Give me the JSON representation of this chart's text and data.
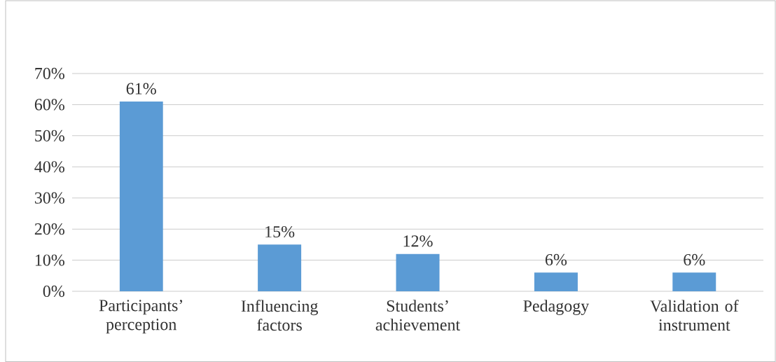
{
  "chart_data": {
    "type": "bar",
    "categories": [
      "Participants’ perception",
      "Influencing factors",
      "Students’ achievement",
      "Pedagogy",
      "Validation of instrument"
    ],
    "values": [
      61,
      15,
      12,
      6,
      6
    ],
    "value_labels": [
      "61%",
      "15%",
      "12%",
      "6%",
      "6%"
    ],
    "color": "#5b9bd5",
    "ylim": [
      0,
      70
    ],
    "yticks": [
      {
        "value": 0,
        "label": "0%"
      },
      {
        "value": 10,
        "label": "10%"
      },
      {
        "value": 20,
        "label": "20%"
      },
      {
        "value": 30,
        "label": "30%"
      },
      {
        "value": 40,
        "label": "40%"
      },
      {
        "value": 50,
        "label": "50%"
      },
      {
        "value": 60,
        "label": "60%"
      },
      {
        "value": 70,
        "label": "70%"
      }
    ],
    "grid": "y"
  }
}
